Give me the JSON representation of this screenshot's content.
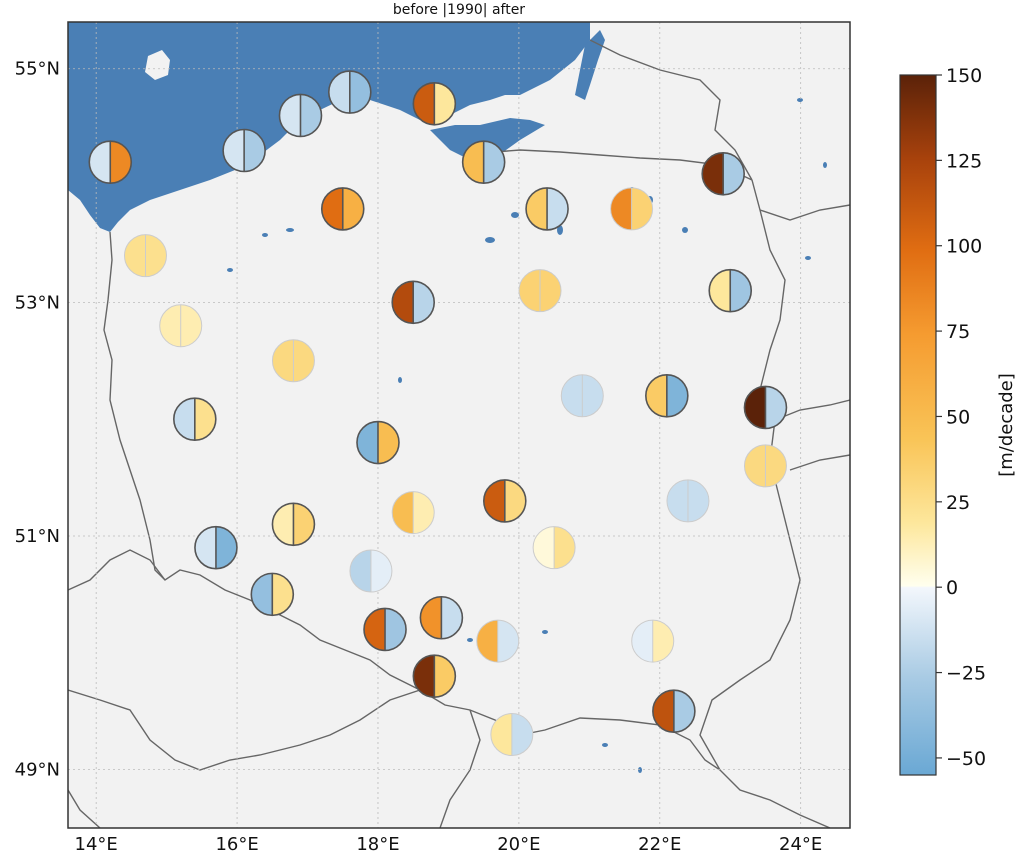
{
  "title": "before |1990| after",
  "map": {
    "lon_range": [
      13.6,
      24.7
    ],
    "lat_range": [
      48.5,
      55.4
    ],
    "lon_ticks": [
      {
        "value": 14,
        "label": "14°E"
      },
      {
        "value": 16,
        "label": "16°E"
      },
      {
        "value": 18,
        "label": "18°E"
      },
      {
        "value": 20,
        "label": "20°E"
      },
      {
        "value": 22,
        "label": "22°E"
      },
      {
        "value": 24,
        "label": "24°E"
      }
    ],
    "lat_ticks": [
      {
        "value": 55,
        "label": "55°N"
      },
      {
        "value": 53,
        "label": "53°N"
      },
      {
        "value": 51,
        "label": "51°N"
      },
      {
        "value": 49,
        "label": "49°N"
      }
    ],
    "grid": true,
    "land_color": "#f2f2f2",
    "sea_color": "#4a7fb5",
    "border_color": "#666666"
  },
  "colorbar": {
    "label": "[m/decade]",
    "min": -55,
    "max": 150,
    "ticks": [
      {
        "value": 150,
        "label": "150"
      },
      {
        "value": 125,
        "label": "125"
      },
      {
        "value": 100,
        "label": "100"
      },
      {
        "value": 75,
        "label": "75"
      },
      {
        "value": 50,
        "label": "50"
      },
      {
        "value": 25,
        "label": "25"
      },
      {
        "value": 0,
        "label": "0"
      },
      {
        "value": -25,
        "label": "−25"
      },
      {
        "value": -50,
        "label": "−50"
      }
    ]
  },
  "stations": [
    {
      "lon": 14.2,
      "lat": 54.2,
      "before": -10,
      "after": 85,
      "significant": true
    },
    {
      "lon": 14.7,
      "lat": 53.4,
      "before": 25,
      "after": 25,
      "significant": false
    },
    {
      "lon": 16.1,
      "lat": 54.3,
      "before": -10,
      "after": -25,
      "significant": true
    },
    {
      "lon": 16.9,
      "lat": 54.6,
      "before": -10,
      "after": -25,
      "significant": true
    },
    {
      "lon": 17.6,
      "lat": 54.8,
      "before": -15,
      "after": -35,
      "significant": true
    },
    {
      "lon": 18.8,
      "lat": 54.7,
      "before": 110,
      "after": 20,
      "significant": true
    },
    {
      "lon": 19.5,
      "lat": 54.2,
      "before": 50,
      "after": -25,
      "significant": true
    },
    {
      "lon": 17.5,
      "lat": 53.8,
      "before": 100,
      "after": 60,
      "significant": true
    },
    {
      "lon": 20.4,
      "lat": 53.8,
      "before": 40,
      "after": -15,
      "significant": true
    },
    {
      "lon": 21.6,
      "lat": 53.8,
      "before": 85,
      "after": 35,
      "significant": false
    },
    {
      "lon": 22.9,
      "lat": 54.1,
      "before": 140,
      "after": -25,
      "significant": true
    },
    {
      "lon": 18.5,
      "lat": 53.0,
      "before": 120,
      "after": -20,
      "significant": true
    },
    {
      "lon": 20.3,
      "lat": 53.1,
      "before": 35,
      "after": 35,
      "significant": false
    },
    {
      "lon": 23.0,
      "lat": 53.1,
      "before": 20,
      "after": -30,
      "significant": true
    },
    {
      "lon": 15.2,
      "lat": 52.8,
      "before": 15,
      "after": 15,
      "significant": false
    },
    {
      "lon": 16.8,
      "lat": 52.5,
      "before": 30,
      "after": 30,
      "significant": false
    },
    {
      "lon": 15.4,
      "lat": 52.0,
      "before": -15,
      "after": 25,
      "significant": true
    },
    {
      "lon": 18.0,
      "lat": 51.8,
      "before": -45,
      "after": 50,
      "significant": true
    },
    {
      "lon": 20.9,
      "lat": 52.2,
      "before": -15,
      "after": -15,
      "significant": false
    },
    {
      "lon": 22.1,
      "lat": 52.2,
      "before": 40,
      "after": -45,
      "significant": true
    },
    {
      "lon": 23.5,
      "lat": 52.1,
      "before": 150,
      "after": -20,
      "significant": true
    },
    {
      "lon": 23.5,
      "lat": 51.6,
      "before": 30,
      "after": 30,
      "significant": false
    },
    {
      "lon": 18.5,
      "lat": 51.2,
      "before": 50,
      "after": 15,
      "significant": false
    },
    {
      "lon": 19.8,
      "lat": 51.3,
      "before": 110,
      "after": 30,
      "significant": true
    },
    {
      "lon": 16.8,
      "lat": 51.1,
      "before": 15,
      "after": 35,
      "significant": true
    },
    {
      "lon": 15.7,
      "lat": 50.9,
      "before": -10,
      "after": -45,
      "significant": true
    },
    {
      "lon": 22.4,
      "lat": 51.3,
      "before": -15,
      "after": -15,
      "significant": false
    },
    {
      "lon": 17.9,
      "lat": 50.7,
      "before": -20,
      "after": -5,
      "significant": false
    },
    {
      "lon": 20.5,
      "lat": 50.9,
      "before": 5,
      "after": 25,
      "significant": false
    },
    {
      "lon": 16.5,
      "lat": 50.5,
      "before": -35,
      "after": 25,
      "significant": true
    },
    {
      "lon": 18.1,
      "lat": 50.2,
      "before": 105,
      "after": -30,
      "significant": true
    },
    {
      "lon": 18.9,
      "lat": 50.3,
      "before": 80,
      "after": -15,
      "significant": true
    },
    {
      "lon": 19.7,
      "lat": 50.1,
      "before": 60,
      "after": -10,
      "significant": false
    },
    {
      "lon": 21.9,
      "lat": 50.1,
      "before": -5,
      "after": 15,
      "significant": false
    },
    {
      "lon": 18.8,
      "lat": 49.8,
      "before": 140,
      "after": 40,
      "significant": true
    },
    {
      "lon": 22.2,
      "lat": 49.5,
      "before": 115,
      "after": -25,
      "significant": true
    },
    {
      "lon": 19.9,
      "lat": 49.3,
      "before": 20,
      "after": -15,
      "significant": false
    }
  ]
}
